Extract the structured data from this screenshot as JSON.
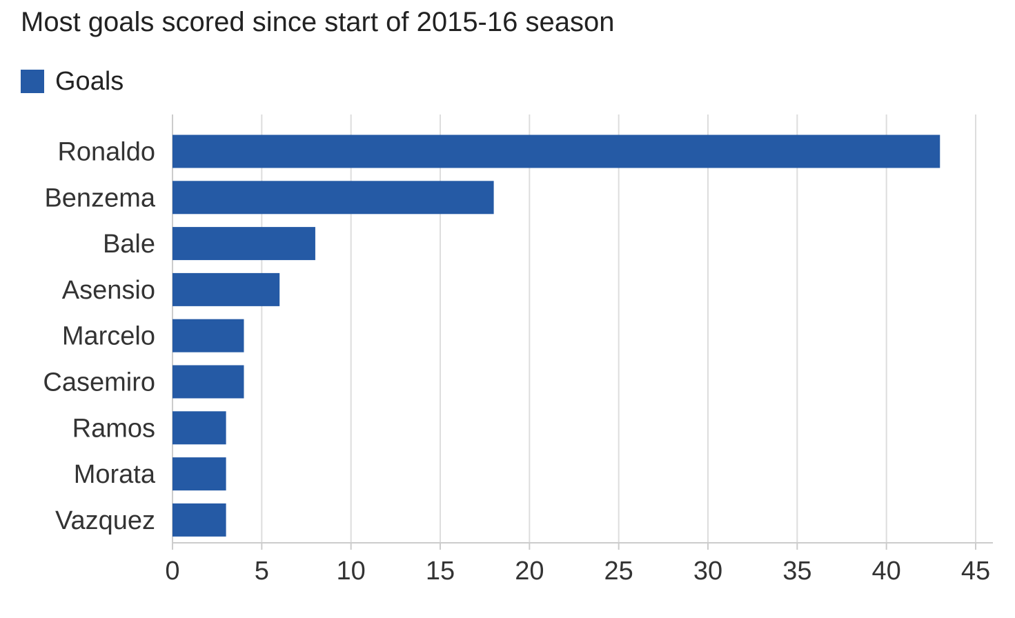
{
  "chart_data": {
    "type": "bar",
    "orientation": "horizontal",
    "title": "Most goals scored since start of 2015-16 season",
    "categories": [
      "Ronaldo",
      "Benzema",
      "Bale",
      "Asensio",
      "Marcelo",
      "Casemiro",
      "Ramos",
      "Morata",
      "Vazquez"
    ],
    "series": [
      {
        "name": "Goals",
        "color": "#255aa5",
        "values": [
          43,
          18,
          8,
          6,
          4,
          4,
          3,
          3,
          3
        ]
      }
    ],
    "xlim": [
      0,
      45
    ],
    "x_ticks": [
      "0",
      "5",
      "10",
      "15",
      "20",
      "25",
      "30",
      "35",
      "40",
      "45"
    ],
    "xlabel": "",
    "ylabel": "",
    "grid": "vertical",
    "legend_position": "top-left"
  }
}
